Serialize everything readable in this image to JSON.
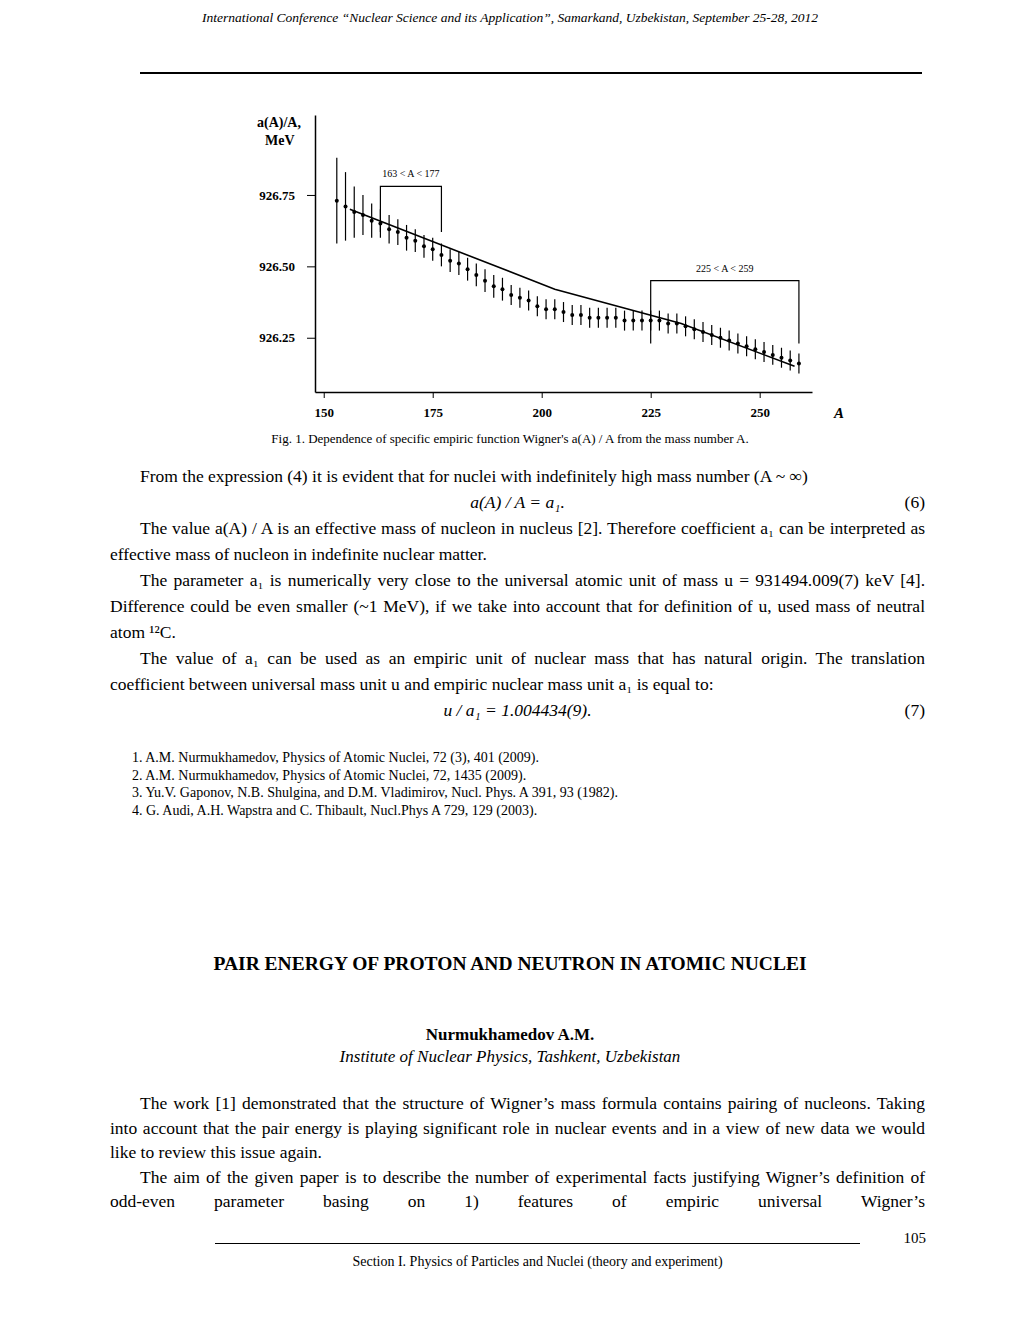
{
  "header": "International Conference “Nuclear Science and its Application”, Samarkand, Uzbekistan, September 25-28, 2012",
  "chart_data": {
    "type": "scatter",
    "xlabel": "A",
    "ylabel": "a(A)/A, MeV",
    "xlim": [
      148,
      262
    ],
    "ylim": [
      926.06,
      927.03
    ],
    "xticks": [
      150,
      175,
      200,
      225,
      250
    ],
    "yticks": [
      926.25,
      {
        "value": 926.5,
        "label": "926.50"
      },
      926.75
    ],
    "grid": false,
    "series": [
      {
        "type": "scatter",
        "color": "#000000",
        "marker": "dot",
        "x": [
          153,
          155,
          157,
          159,
          161,
          163,
          165,
          167,
          169,
          171,
          173,
          175,
          177,
          179,
          181,
          183,
          185,
          187,
          189,
          191,
          193,
          195,
          197,
          199,
          201,
          203,
          205,
          207,
          209,
          211,
          213,
          215,
          217,
          219,
          221,
          223,
          225,
          227,
          229,
          231,
          233,
          235,
          237,
          239,
          241,
          243,
          245,
          247,
          249,
          251,
          253,
          255,
          257,
          259
        ],
        "values": [
          926.73,
          926.71,
          926.69,
          926.68,
          926.66,
          926.65,
          926.63,
          926.62,
          926.6,
          926.59,
          926.57,
          926.56,
          926.54,
          926.52,
          926.51,
          926.49,
          926.47,
          926.45,
          926.43,
          926.42,
          926.4,
          926.39,
          926.38,
          926.36,
          926.35,
          926.35,
          926.34,
          926.33,
          926.33,
          926.32,
          926.32,
          926.32,
          926.32,
          926.31,
          926.31,
          926.31,
          926.31,
          926.31,
          926.3,
          926.3,
          926.29,
          926.28,
          926.27,
          926.26,
          926.25,
          926.24,
          926.23,
          926.22,
          926.21,
          926.2,
          926.19,
          926.18,
          926.17,
          926.16
        ],
        "errors": [
          0.15,
          0.12,
          0.09,
          0.07,
          0.06,
          0.05,
          0.05,
          0.045,
          0.045,
          0.04,
          0.04,
          0.04,
          0.04,
          0.04,
          0.04,
          0.04,
          0.04,
          0.04,
          0.04,
          0.04,
          0.035,
          0.035,
          0.035,
          0.035,
          0.035,
          0.035,
          0.035,
          0.035,
          0.035,
          0.035,
          0.035,
          0.035,
          0.035,
          0.035,
          0.035,
          0.035,
          0.035,
          0.035,
          0.035,
          0.035,
          0.035,
          0.035,
          0.035,
          0.035,
          0.035,
          0.035,
          0.035,
          0.035,
          0.035,
          0.035,
          0.035,
          0.035,
          0.035,
          0.035
        ]
      },
      {
        "type": "line",
        "color": "#000000",
        "line_style": "solid",
        "x": [
          156,
          203,
          232,
          258
        ],
        "values": [
          926.7,
          926.42,
          926.3,
          926.15
        ]
      }
    ],
    "annotations": [
      {
        "text": "163 < A < 177",
        "x0": 163,
        "x1": 177,
        "y": 926.78,
        "y_end": 926.62
      },
      {
        "text": "225 < A < 259",
        "x0": 225,
        "x1": 259,
        "y": 926.45,
        "y_end": 926.23
      }
    ]
  },
  "caption": "Fig. 1. Dependence of specific empiric function Wigner's a(A) / A from the mass number A.",
  "body": [
    {
      "type": "p",
      "text": "From the expression (4) it is evident that for nuclei with indefinitely high mass number (A ~ ∞)"
    },
    {
      "type": "eq",
      "text": "a(A) / A = a₁.",
      "number": "(6)"
    },
    {
      "type": "p",
      "text": "The value a(A) / A is an effective mass of nucleon in nucleus [2]. Therefore coefficient a₁ can be interpreted as effective mass of nucleon in indefinite nuclear matter."
    },
    {
      "type": "p",
      "text": "The parameter a₁ is numerically very close to the universal atomic unit of mass u = 931494.009(7) keV [4]. Difference could be even smaller (~1 MeV), if we take into account that for definition of u, used mass of neutral atom ¹²C."
    },
    {
      "type": "p",
      "text": "The value of a₁ can be used as an empiric unit of nuclear mass that has natural origin. The translation coefficient between universal mass unit u and empiric nuclear mass unit a₁ is equal to:"
    },
    {
      "type": "eq",
      "text": "u / a₁ = 1.004434(9).",
      "number": "(7)"
    }
  ],
  "references": [
    "1. A.M. Nurmukhamedov, Physics of Atomic Nuclei, 72 (3), 401 (2009).",
    "2. A.M. Nurmukhamedov, Physics of Atomic Nuclei, 72, 1435 (2009).",
    "3. Yu.V. Gaponov, N.B. Shulgina, and D.M. Vladimirov, Nucl. Phys. A 391, 93 (1982).",
    "4. G. Audi, A.H. Wapstra and C. Thibault, Nucl.Phys A 729, 129 (2003)."
  ],
  "article": {
    "title": "PAIR ENERGY OF PROTON AND NEUTRON IN ATOMIC NUCLEI",
    "author": "Nurmukhamedov A.M.",
    "affiliation": "Institute of Nuclear Physics, Tashkent, Uzbekistan",
    "paragraphs": [
      "The work [1] demonstrated that the structure of Wigner’s mass formula contains pairing of nucleons. Taking into account that the pair energy is playing significant role in nuclear events and in a view of new data we would like to review this issue again.",
      "The aim of the given paper is to describe the number of experimental facts justifying Wigner’s definition of odd-even parameter basing on 1) features of empiric universal Wigner’s"
    ]
  },
  "footer": {
    "page": "105",
    "section": "Section I. Physics of Particles and Nuclei (theory and experiment)"
  }
}
